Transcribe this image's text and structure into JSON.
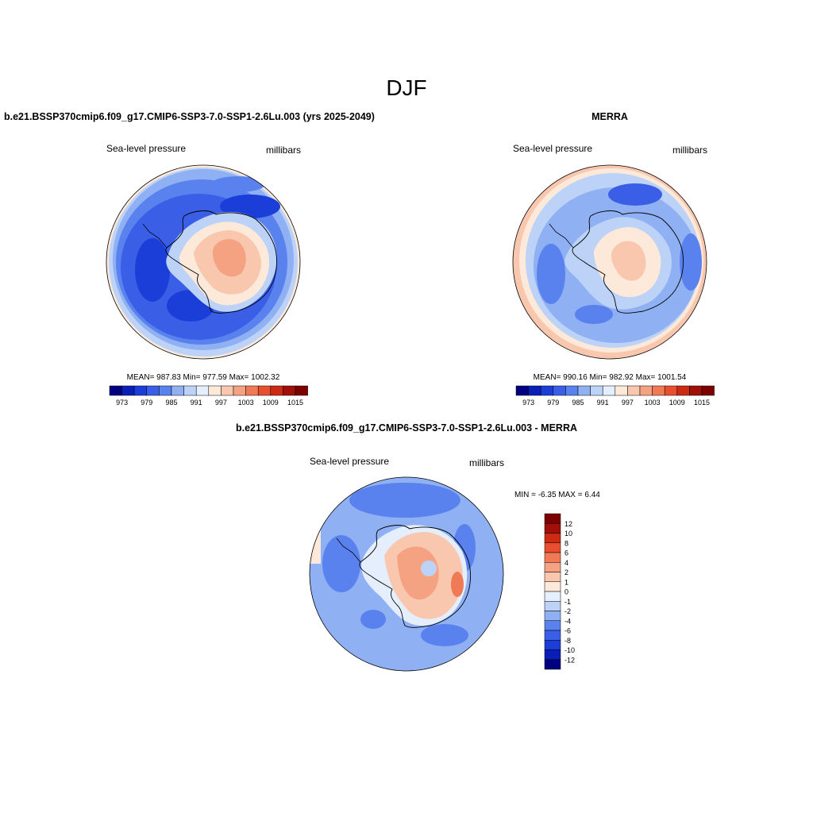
{
  "page": {
    "season": "DJF"
  },
  "panels": [
    {
      "title": "b.e21.BSSP370cmip6.f09_g17.CMIP6-SSP3-7.0-SSP1-2.6Lu.003 (yrs 2025-2049)",
      "left_label": "Sea-level pressure",
      "right_label": "millibars",
      "stats": "MEAN= 987.83  Min= 977.59  Max= 1002.32"
    },
    {
      "title": "MERRA",
      "left_label": "Sea-level pressure",
      "right_label": "millibars",
      "stats": "MEAN= 990.16  Min= 982.92  Max= 1001.54"
    },
    {
      "title": "b.e21.BSSP370cmip6.f09_g17.CMIP6-SSP3-7.0-SSP1-2.6Lu.003 - MERRA",
      "left_label": "Sea-level pressure",
      "right_label": "millibars",
      "stats": "MIN =  -6.35 MAX =   6.44"
    }
  ],
  "chart_data": [
    {
      "type": "heatmap",
      "projection": "south-polar stereographic",
      "title": "b.e21.BSSP370cmip6.f09_g17.CMIP6-SSP3-7.0-SSP1-2.6Lu.003 (yrs 2025-2049)",
      "variable": "Sea-level pressure",
      "units": "millibars",
      "mean": 987.83,
      "min": 977.59,
      "max": 1002.32,
      "colorbar_ticks": [
        "973",
        "979",
        "985",
        "991",
        "997",
        "1003",
        "1009",
        "1015"
      ],
      "colorbar_colors": [
        "#000080",
        "#0a1fb8",
        "#1c3ed8",
        "#3a5fe6",
        "#5a82ee",
        "#8fb0f2",
        "#bcd2f7",
        "#e4eefc",
        "#fde9d9",
        "#f9c6ae",
        "#f5a283",
        "#f07a55",
        "#e84f2e",
        "#cc2a12",
        "#a00f08",
        "#7d0000"
      ]
    },
    {
      "type": "heatmap",
      "projection": "south-polar stereographic",
      "title": "MERRA",
      "variable": "Sea-level pressure",
      "units": "millibars",
      "mean": 990.16,
      "min": 982.92,
      "max": 1001.54,
      "colorbar_ticks": [
        "973",
        "979",
        "985",
        "991",
        "997",
        "1003",
        "1009",
        "1015"
      ],
      "colorbar_colors": [
        "#000080",
        "#0a1fb8",
        "#1c3ed8",
        "#3a5fe6",
        "#5a82ee",
        "#8fb0f2",
        "#bcd2f7",
        "#e4eefc",
        "#fde9d9",
        "#f9c6ae",
        "#f5a283",
        "#f07a55",
        "#e84f2e",
        "#cc2a12",
        "#a00f08",
        "#7d0000"
      ]
    },
    {
      "type": "heatmap",
      "projection": "south-polar stereographic",
      "title": "b.e21.BSSP370cmip6.f09_g17.CMIP6-SSP3-7.0-SSP1-2.6Lu.003 - MERRA",
      "variable": "Sea-level pressure",
      "units": "millibars",
      "min": -6.35,
      "max": 6.44,
      "colorbar_ticks": [
        "12",
        "10",
        "8",
        "6",
        "4",
        "2",
        "1",
        "0",
        "-1",
        "-2",
        "-4",
        "-6",
        "-8",
        "-10",
        "-12"
      ],
      "colorbar_colors": [
        "#7d0000",
        "#a00f08",
        "#cc2a12",
        "#e84f2e",
        "#f07a55",
        "#f5a283",
        "#f9c6ae",
        "#fde9d9",
        "#e4eefc",
        "#bcd2f7",
        "#8fb0f2",
        "#5a82ee",
        "#3a5fe6",
        "#1c3ed8",
        "#0a1fb8",
        "#000080"
      ]
    }
  ]
}
